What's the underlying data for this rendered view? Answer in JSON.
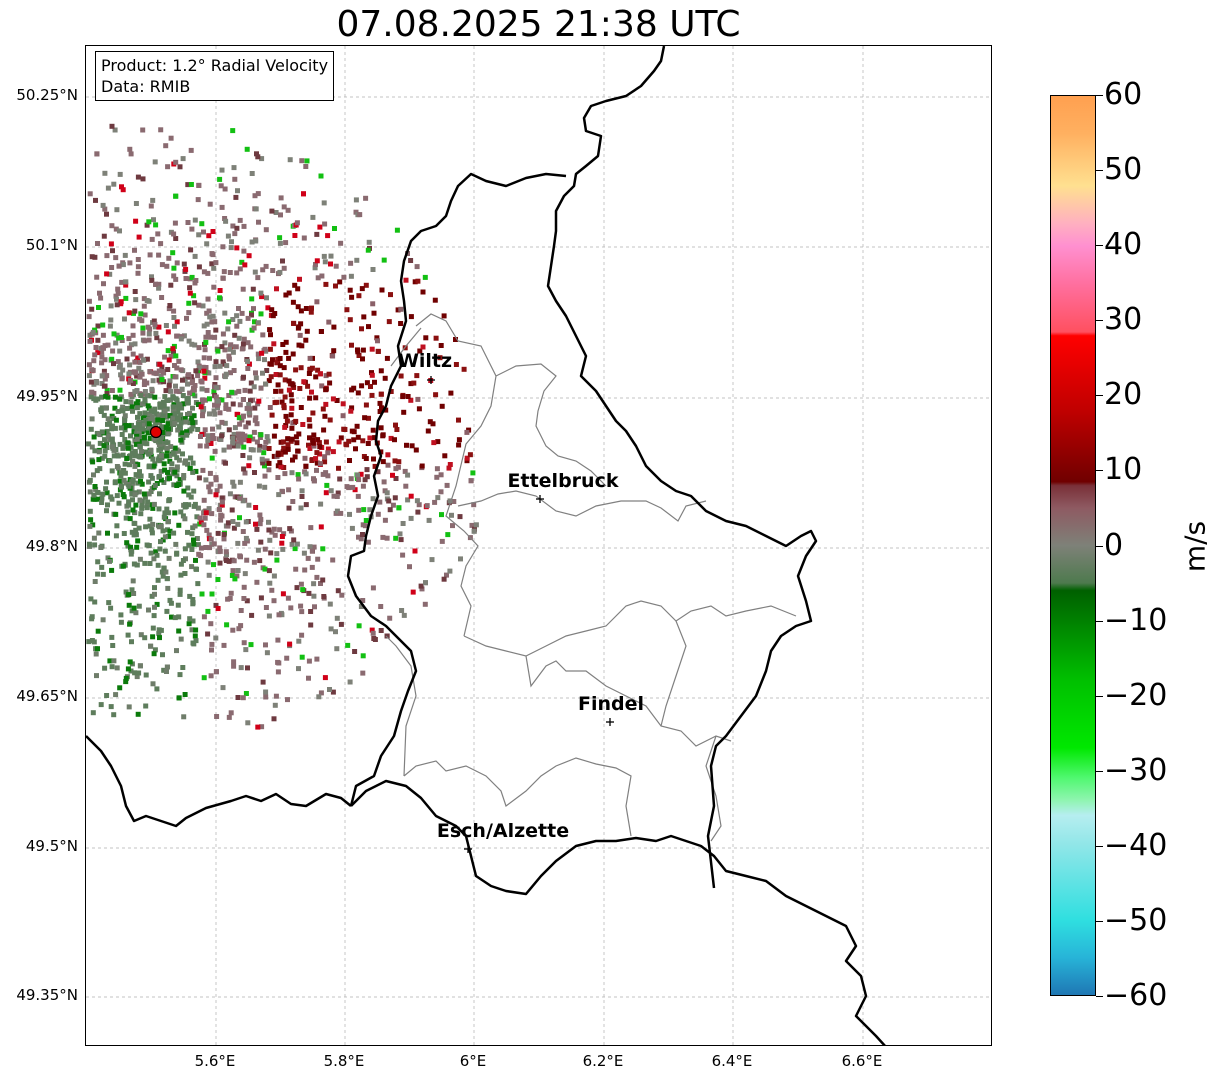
{
  "title": "07.08.2025 21:38 UTC",
  "info_box": {
    "product": "Product: 1.2° Radial Velocity",
    "data_source": "Data: RMIB"
  },
  "lat_labels": [
    "50.25°N",
    "50.1°N",
    "49.95°N",
    "49.8°N",
    "49.65°N",
    "49.5°N",
    "49.35°N"
  ],
  "lon_labels": [
    "5.6°E",
    "5.8°E",
    "6°E",
    "6.2°E",
    "6.4°E",
    "6.6°E"
  ],
  "cities": [
    {
      "name": "Wiltz"
    },
    {
      "name": "Ettelbruck"
    },
    {
      "name": "Findel"
    },
    {
      "name": "Esch/Alzette"
    }
  ],
  "colorbar": {
    "unit": "m/s",
    "min": -60,
    "max": 60,
    "tick_labels": [
      "60",
      "50",
      "40",
      "30",
      "20",
      "10",
      "0",
      "−10",
      "−20",
      "−30",
      "−40",
      "−50",
      "−60"
    ],
    "stops": [
      {
        "v": -60,
        "color": "#1f77b4"
      },
      {
        "v": -55,
        "color": "#27b4d8"
      },
      {
        "v": -50,
        "color": "#2fdfe0"
      },
      {
        "v": -40,
        "color": "#90e6e8"
      },
      {
        "v": -36,
        "color": "#b6eef0"
      },
      {
        "v": -34,
        "color": "#8ff5b0"
      },
      {
        "v": -31,
        "color": "#50f870"
      },
      {
        "v": -27,
        "color": "#00e800"
      },
      {
        "v": -18,
        "color": "#00c000"
      },
      {
        "v": -6,
        "color": "#006000"
      },
      {
        "v": -5,
        "color": "#4e7a4e"
      },
      {
        "v": 0,
        "color": "#7e8178"
      },
      {
        "v": 5,
        "color": "#8e5a62"
      },
      {
        "v": 8,
        "color": "#7a3038"
      },
      {
        "v": 8.5,
        "color": "#700000"
      },
      {
        "v": 18,
        "color": "#c00000"
      },
      {
        "v": 28,
        "color": "#ff0000"
      },
      {
        "v": 28.5,
        "color": "#ff5060"
      },
      {
        "v": 35,
        "color": "#ff70a0"
      },
      {
        "v": 40,
        "color": "#ff90d0"
      },
      {
        "v": 43,
        "color": "#ffb0c0"
      },
      {
        "v": 48,
        "color": "#ffe090"
      },
      {
        "v": 55,
        "color": "#ffb060"
      },
      {
        "v": 60,
        "color": "#ffa050"
      }
    ]
  },
  "colors": {
    "radar_site": "#e00000",
    "country_border": "#000000",
    "district_border": "#808080",
    "grid": "#b0b0b0"
  }
}
